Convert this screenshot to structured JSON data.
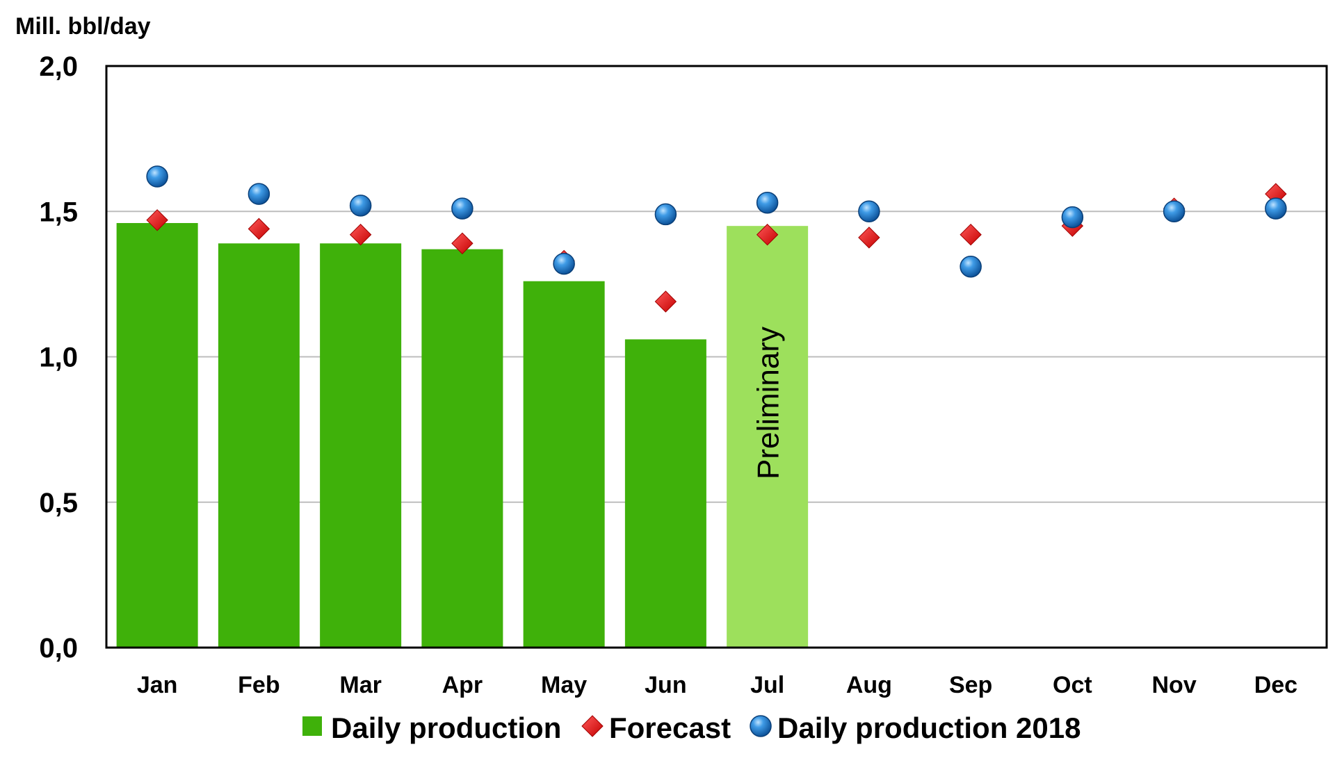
{
  "chart_data": {
    "type": "bar",
    "title": "",
    "ylabel": "Mill. bbl/day",
    "xlabel": "",
    "ylim": [
      0,
      2
    ],
    "yticks": [
      "0,0",
      "0,5",
      "1,0",
      "1,5",
      "2,0"
    ],
    "ytick_values": [
      0,
      0.5,
      1.0,
      1.5,
      2.0
    ],
    "grid": true,
    "legend_position": "bottom",
    "categories": [
      "Jan",
      "Feb",
      "Mar",
      "Apr",
      "May",
      "Jun",
      "Jul",
      "Aug",
      "Sep",
      "Oct",
      "Nov",
      "Dec"
    ],
    "series": [
      {
        "name": "Daily production",
        "kind": "bar",
        "color": "#3fb10a",
        "preliminary_color": "#9de05c",
        "values": [
          1.46,
          1.39,
          1.39,
          1.37,
          1.26,
          1.06,
          1.45,
          null,
          null,
          null,
          null,
          null
        ]
      },
      {
        "name": "Forecast",
        "kind": "diamond",
        "color": "#e01010",
        "values": [
          1.47,
          1.44,
          1.42,
          1.39,
          1.33,
          1.19,
          1.42,
          1.41,
          1.42,
          1.45,
          1.51,
          1.56
        ]
      },
      {
        "name": "Daily production 2018",
        "kind": "circle",
        "color": "#1a75c8",
        "values": [
          1.62,
          1.56,
          1.52,
          1.51,
          1.32,
          1.49,
          1.53,
          1.5,
          1.31,
          1.48,
          1.5,
          1.51
        ]
      }
    ],
    "annotations": [
      {
        "category": "Jul",
        "text": "Preliminary",
        "style": "vertical-in-bar"
      }
    ]
  }
}
